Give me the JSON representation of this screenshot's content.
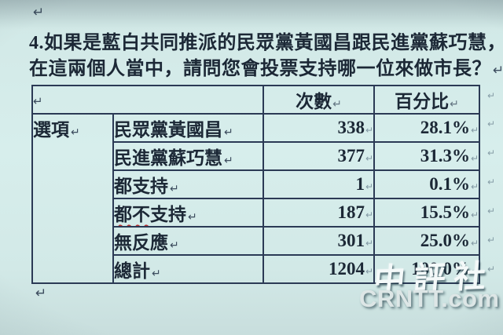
{
  "document": {
    "question": {
      "line1": "4.如果是藍白共同推派的民眾黨黃國昌跟民進黨蘇巧慧，",
      "line2": "在這兩個人當中，請問您會投票支持哪一位來做市長？"
    },
    "marks": {
      "pilcrow": "↵"
    }
  },
  "table": {
    "header": {
      "count_label": "次數",
      "percent_label": "百分比"
    },
    "row_group_label": "選項",
    "rows": [
      {
        "option": "民眾黨黃國昌",
        "count": "338",
        "percent": "28.1%"
      },
      {
        "option": "民進黨蘇巧慧",
        "count": "377",
        "percent": "31.3%"
      },
      {
        "option": "都支持",
        "count": "1",
        "percent": "0.1%"
      },
      {
        "option_marked": "都不",
        "option_rest": "支持",
        "count": "187",
        "percent": "15.5%"
      },
      {
        "option": "無反應",
        "count": "301",
        "percent": "25.0%"
      },
      {
        "option": "總計",
        "count": "1204",
        "percent": "100.0%"
      }
    ]
  },
  "watermark": {
    "cn": "中評社",
    "en": "CRNTT.com"
  },
  "colors": {
    "background": "#d2e9e7",
    "table_border": "#2b3a55",
    "text": "#1c2836",
    "spellcheck_underline": "#b83232",
    "watermark_text": "#f4f9f9"
  },
  "chart_data": {
    "type": "table",
    "title": "4.如果是藍白共同推派的民眾黨黃國昌跟民進黨蘇巧慧，在這兩個人當中，請問您會投票支持哪一位來做市長？",
    "columns": [
      "選項",
      "次數",
      "百分比"
    ],
    "rows": [
      [
        "民眾黨黃國昌",
        338,
        "28.1%"
      ],
      [
        "民進黨蘇巧慧",
        377,
        "31.3%"
      ],
      [
        "都支持",
        1,
        "0.1%"
      ],
      [
        "都不支持",
        187,
        "15.5%"
      ],
      [
        "無反應",
        301,
        "25.0%"
      ],
      [
        "總計",
        1204,
        "100.0%"
      ]
    ]
  }
}
